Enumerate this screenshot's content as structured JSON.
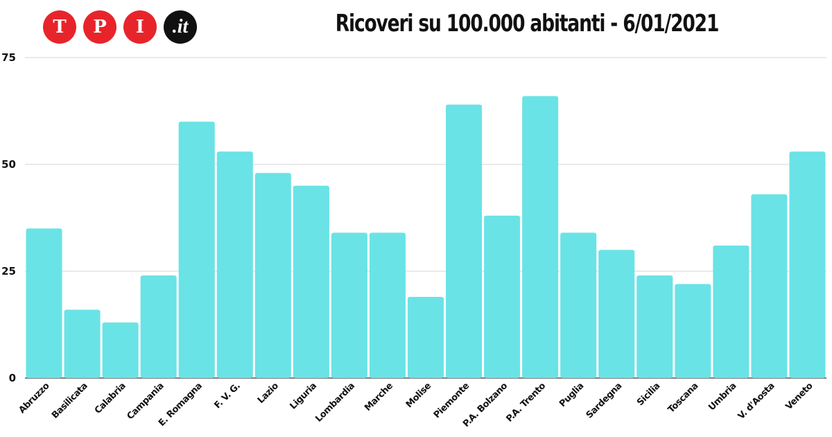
{
  "logo": {
    "letters": [
      "T",
      "P",
      "I"
    ],
    "suffix": ".it",
    "accent": "#e8242b",
    "dark": "#111111"
  },
  "chart_data": {
    "type": "bar",
    "title": "Ricoveri su 100.000 abitanti - 6/01/2021",
    "xlabel": "",
    "ylabel": "",
    "ylim": [
      0,
      75
    ],
    "yticks": [
      0,
      25,
      50,
      75
    ],
    "grid": true,
    "bar_color": "#6ae3e6",
    "categories": [
      "Abruzzo",
      "Basilicata",
      "Calabria",
      "Campania",
      "E. Romagna",
      "F. V. G.",
      "Lazio",
      "Liguria",
      "Lombardia",
      "Marche",
      "Molise",
      "Piemonte",
      "P.A. Bolzano",
      "P.A. Trento",
      "Puglia",
      "Sardegna",
      "Sicilia",
      "Toscana",
      "Umbria",
      "V. d'Aosta",
      "Veneto"
    ],
    "values": [
      35,
      16,
      13,
      24,
      60,
      53,
      48,
      45,
      34,
      34,
      19,
      64,
      38,
      66,
      34,
      30,
      24,
      22,
      31,
      43,
      53
    ]
  }
}
